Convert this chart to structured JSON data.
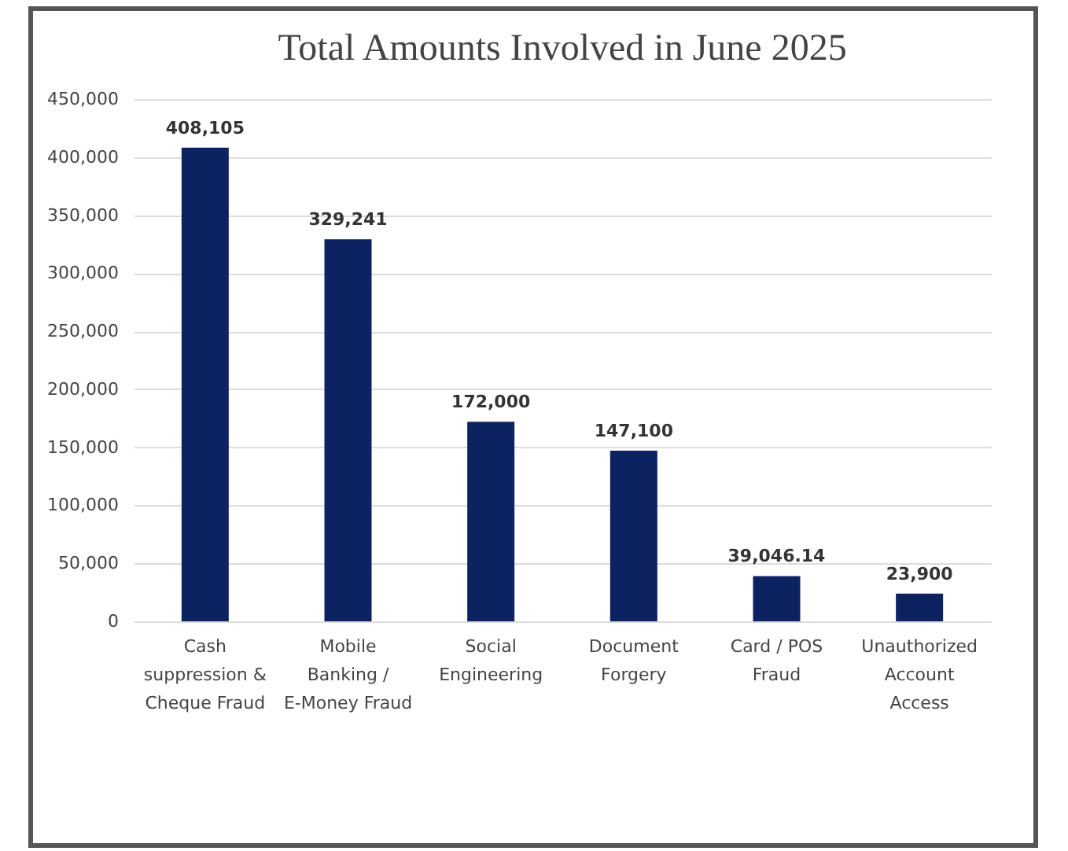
{
  "chart_data": {
    "type": "bar",
    "title": "Total Amounts Involved in June 2025",
    "categories": [
      "Cash suppression & Cheque Fraud",
      "Mobile Banking / E-Money Fraud",
      "Social Engineering",
      "Document Forgery",
      "Card / POS Fraud",
      "Unauthorized Account Access"
    ],
    "values": [
      408105,
      329241,
      172000,
      147100,
      39046.14,
      23900
    ],
    "value_labels": [
      "408,105",
      "329,241",
      "172,000",
      "147,100",
      "39,046.14",
      "23,900"
    ],
    "color": "#0d2260",
    "ylim": [
      0,
      450000
    ],
    "yticks": [
      0,
      {
        "value": 50000,
        "label": "50,000"
      },
      {
        "value": 100000,
        "label": "100,000"
      },
      {
        "value": 150000,
        "label": "150,000"
      },
      {
        "value": 200000,
        "label": "200,000"
      },
      {
        "value": 250000,
        "label": "250,000"
      },
      {
        "value": 300000,
        "label": "300,000"
      },
      {
        "value": 350000,
        "label": "350,000"
      },
      {
        "value": 400000,
        "label": "400,000"
      },
      {
        "value": 450000,
        "label": "450,000"
      }
    ],
    "grid": "y"
  }
}
